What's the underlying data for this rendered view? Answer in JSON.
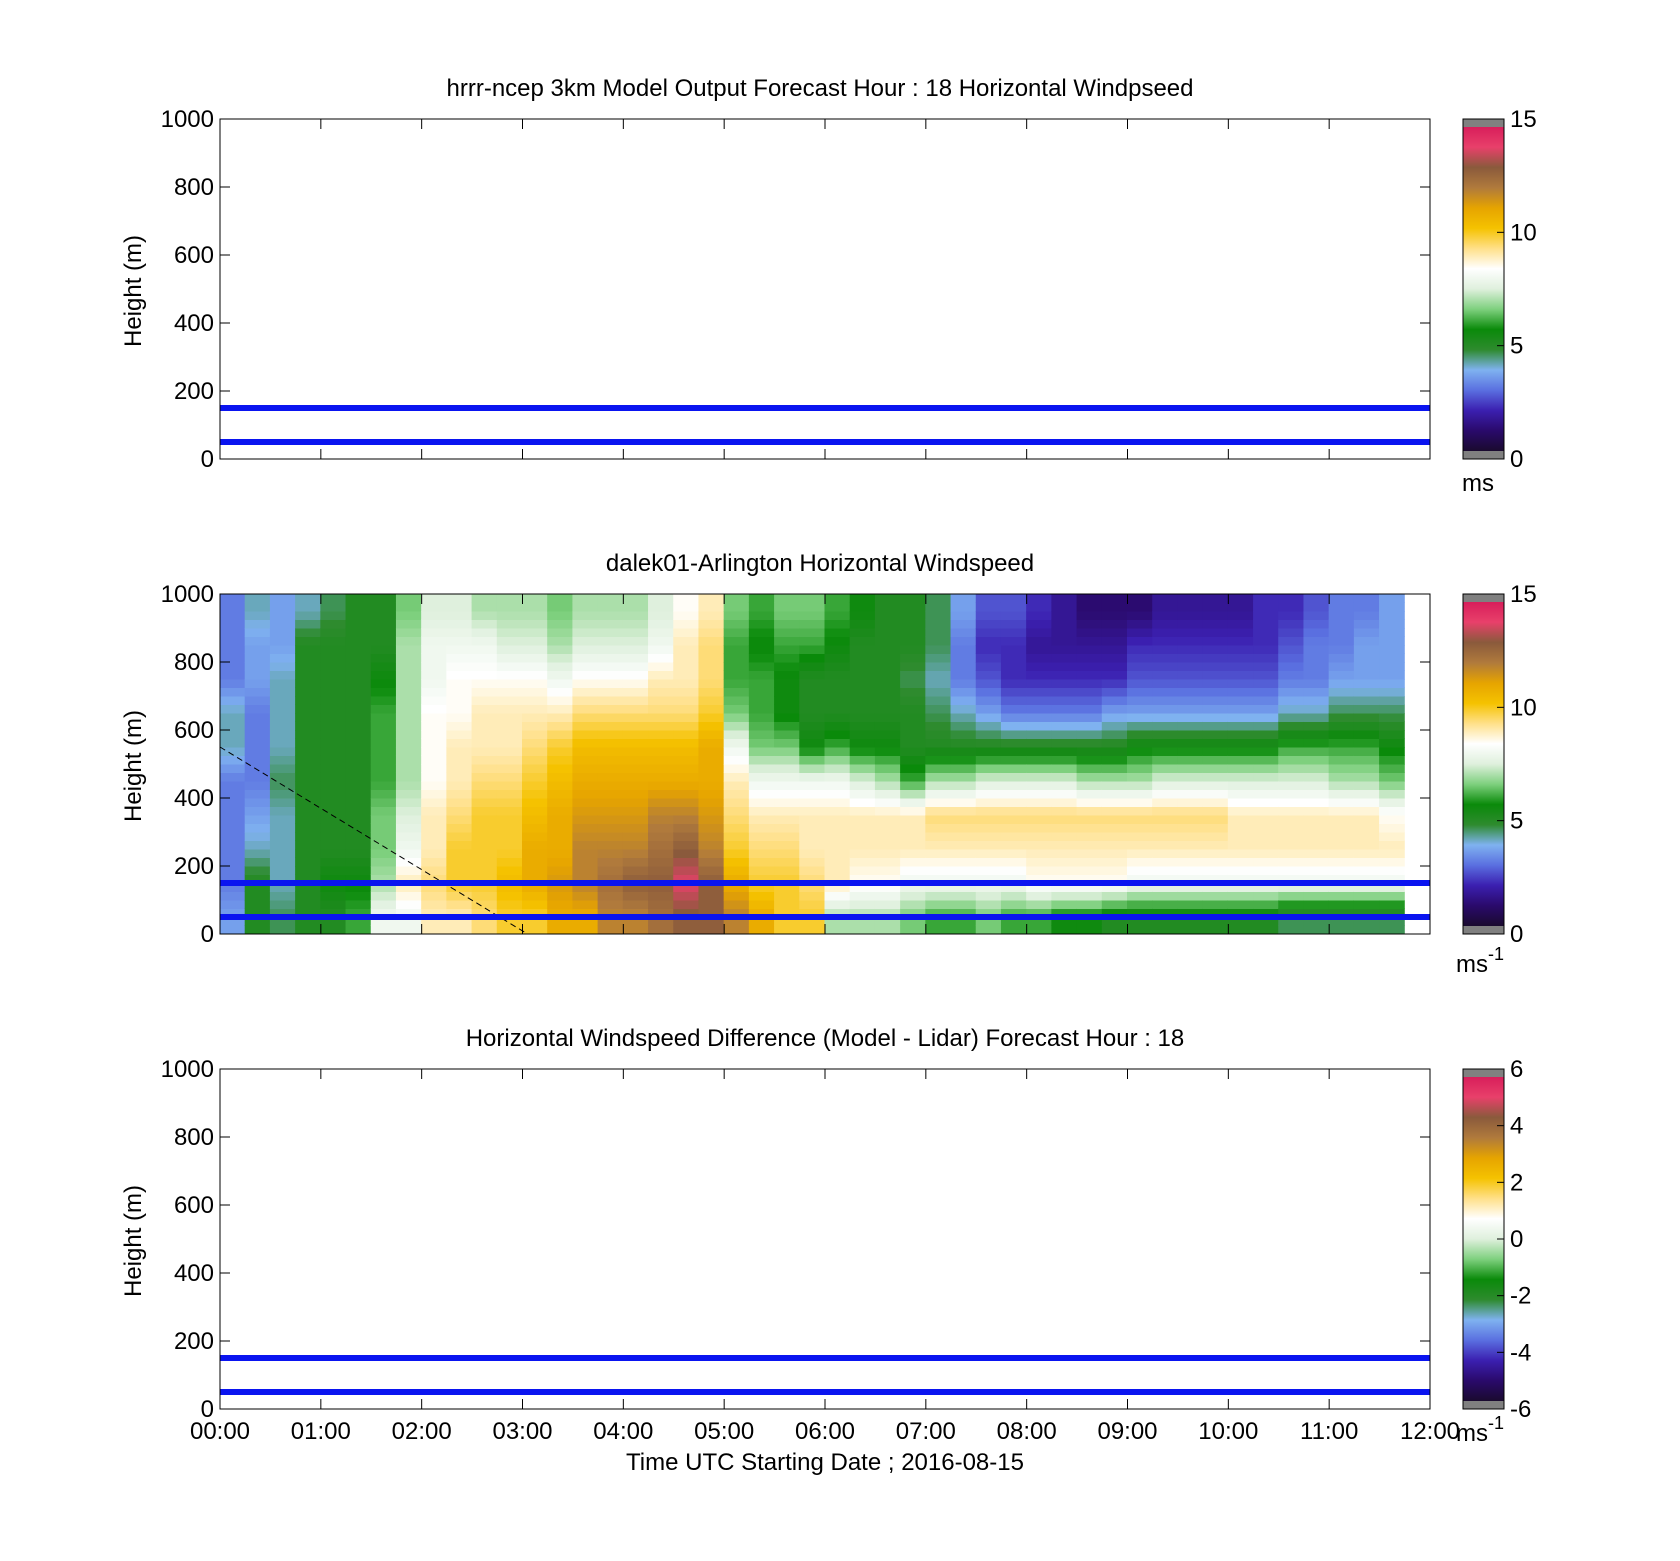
{
  "figure": {
    "xlabel": "Time UTC  Starting Date ; 2016-08-15",
    "ylabel": "Height (m)"
  },
  "colormap_stops": [
    "#1a0a2e",
    "#2a0a6b",
    "#3b1fb0",
    "#5a6fe0",
    "#7fb2f0",
    "#2e8b2e",
    "#0a8a0a",
    "#7ed07e",
    "#dff0dd",
    "#ffffff",
    "#ffe089",
    "#f5c200",
    "#e6a400",
    "#b07a3c",
    "#8a5a3c",
    "#e8406a",
    "#d81e5b"
  ],
  "chart_data": [
    {
      "type": "heatmap",
      "title": "hrrr-ncep 3km Model Output   Forecast Hour : 18 Horizontal Windpseed",
      "ylabel": "Height (m)",
      "ylim": [
        0,
        1000
      ],
      "yticks": [
        "0",
        "200",
        "400",
        "600",
        "800",
        "1000"
      ],
      "xlim_hours": [
        0,
        12
      ],
      "colorbar": {
        "ticks": [
          "0",
          "5",
          "10",
          "15"
        ],
        "range": [
          0,
          15
        ],
        "units_main": "ms",
        "units_sup": ""
      },
      "reference_lines_m": [
        150,
        50
      ],
      "data": []
    },
    {
      "type": "heatmap",
      "title": "dalek01-Arlington  Horizontal Windspeed",
      "ylabel": "Height (m)",
      "ylim": [
        0,
        1000
      ],
      "yticks": [
        "0",
        "200",
        "400",
        "600",
        "800",
        "1000"
      ],
      "xlim_hours": [
        0,
        12
      ],
      "colorbar": {
        "ticks": [
          "0",
          "5",
          "10",
          "15"
        ],
        "range": [
          0,
          15
        ],
        "units_main": "ms",
        "units_sup": "-1"
      },
      "reference_lines_m": [
        150,
        50
      ],
      "dashed_line": {
        "start": [
          0,
          550
        ],
        "end": [
          3.05,
          0
        ]
      },
      "data_extent_hours": [
        0,
        11.85
      ],
      "columns_hours": [
        0.12,
        0.37,
        0.62,
        0.87,
        1.12,
        1.37,
        1.62,
        1.87,
        2.12,
        2.37,
        2.62,
        2.87,
        3.12,
        3.37,
        3.62,
        3.87,
        4.12,
        4.37,
        4.62,
        4.87,
        5.12,
        5.37,
        5.62,
        5.87,
        6.12,
        6.37,
        6.62,
        6.87,
        7.12,
        7.37,
        7.62,
        7.87,
        8.12,
        8.37,
        8.62,
        8.87,
        9.12,
        9.37,
        9.62,
        9.87,
        10.12,
        10.37,
        10.62,
        10.87,
        11.12,
        11.37,
        11.62
      ],
      "windspeed_profile_ms": [
        [
          3.5,
          3,
          3,
          3,
          3,
          4,
          4,
          3,
          3,
          3
        ],
        [
          5,
          5,
          4,
          3.5,
          3,
          3,
          3,
          3.5,
          3.5,
          4
        ],
        [
          4.5,
          4,
          4,
          4,
          4.5,
          4,
          4,
          4,
          3.5,
          3.5
        ],
        [
          5,
          5,
          5,
          5,
          5,
          5,
          5,
          5,
          5,
          4
        ],
        [
          5,
          5.5,
          5,
          5,
          5,
          5,
          5,
          5,
          5,
          4.5
        ],
        [
          6,
          5.5,
          5,
          5,
          5,
          5,
          5,
          5,
          5,
          5
        ],
        [
          8,
          7,
          6.5,
          6.5,
          6,
          6,
          6,
          5.5,
          5,
          5
        ],
        [
          8,
          9,
          8,
          7.5,
          7,
          7,
          7,
          7,
          7,
          6.5
        ],
        [
          9,
          9.5,
          9,
          9,
          8.5,
          8.5,
          8.5,
          8,
          8,
          7.5
        ],
        [
          9,
          10,
          10,
          9.5,
          9,
          9,
          8.5,
          8.5,
          8,
          7.5
        ],
        [
          9.5,
          10,
          10,
          10,
          9.5,
          9,
          9,
          8.5,
          8,
          7
        ],
        [
          10,
          10.5,
          10,
          10,
          9.5,
          9,
          9,
          8.5,
          7.5,
          7
        ],
        [
          10,
          11,
          11,
          10.5,
          10,
          9.5,
          9,
          8.5,
          7.5,
          7
        ],
        [
          11,
          11.5,
          11,
          11,
          10.5,
          10,
          9,
          8,
          7,
          6.5
        ],
        [
          11,
          12,
          12,
          11.5,
          11,
          10.5,
          9.5,
          8.5,
          7.5,
          7
        ],
        [
          12,
          12.5,
          12,
          11.5,
          11,
          10.5,
          9.5,
          8.5,
          7.5,
          7
        ],
        [
          12,
          13,
          12,
          11.5,
          11,
          10.5,
          9.5,
          8.5,
          7.5,
          7
        ],
        [
          12.5,
          13,
          12.5,
          12,
          11,
          10.5,
          9.5,
          9,
          8,
          7.5
        ],
        [
          13,
          14,
          13,
          12,
          11,
          10.5,
          9.5,
          9,
          9,
          8.5
        ],
        [
          13,
          13,
          12,
          11.5,
          11,
          11,
          10,
          9.5,
          9.5,
          9
        ],
        [
          12,
          11,
          10,
          9.5,
          9,
          8,
          6.5,
          6,
          6,
          6.5
        ],
        [
          11,
          10,
          9.5,
          9,
          8,
          6.5,
          6,
          6,
          5.5,
          6
        ],
        [
          10,
          10,
          9.5,
          9,
          8,
          6.5,
          5.5,
          5.5,
          6,
          6.5
        ],
        [
          10,
          9.5,
          9,
          9,
          8,
          5.5,
          5,
          5,
          6,
          6.5
        ],
        [
          7,
          9,
          9,
          9,
          8,
          6,
          5,
          5,
          5.5,
          6
        ],
        [
          7,
          8.5,
          9,
          9,
          7.5,
          5.5,
          5,
          5,
          5,
          5.5
        ],
        [
          7,
          8.5,
          9,
          9,
          7,
          5.5,
          5,
          5,
          5,
          5
        ],
        [
          6.5,
          8,
          9,
          9,
          6,
          5,
          5,
          4.5,
          5,
          5
        ],
        [
          6,
          8,
          9,
          9.5,
          7,
          5,
          4.5,
          4,
          4.5,
          4.5
        ],
        [
          6,
          8,
          9,
          9.5,
          7,
          5,
          4,
          3,
          3,
          3.5
        ],
        [
          6.5,
          8,
          9,
          9.5,
          7.5,
          5,
          3.5,
          2.5,
          2,
          2.5
        ],
        [
          6,
          8,
          9,
          9.5,
          7.5,
          5,
          3,
          2,
          2,
          2.5
        ],
        [
          6,
          8.5,
          9,
          9.5,
          7.5,
          5,
          3,
          2,
          1.5,
          2
        ],
        [
          5.5,
          8.5,
          9,
          9.5,
          7.5,
          5,
          3,
          2,
          1.5,
          1.5
        ],
        [
          5.5,
          8.5,
          9,
          9.5,
          7,
          5,
          3,
          2,
          1.5,
          1
        ],
        [
          5,
          8.5,
          9,
          9.5,
          7,
          5,
          3.5,
          2,
          1.5,
          1
        ],
        [
          5,
          8,
          9,
          9.5,
          7,
          5.5,
          3.5,
          2.5,
          2,
          1
        ],
        [
          5,
          8,
          9,
          9.5,
          7.5,
          5.5,
          3.5,
          2.5,
          2,
          1.5
        ],
        [
          5,
          8,
          9,
          9.5,
          7.5,
          5.5,
          3.5,
          2.5,
          2,
          1.5
        ],
        [
          5,
          8,
          9,
          9.5,
          7.5,
          5.5,
          3.5,
          2.5,
          2,
          1.5
        ],
        [
          5,
          8,
          9,
          9,
          7.5,
          5.5,
          3.5,
          2.5,
          2,
          1.5
        ],
        [
          5,
          8,
          9,
          9,
          7.5,
          5.5,
          3.5,
          2.5,
          2,
          2
        ],
        [
          4.5,
          8,
          9,
          9,
          7.5,
          6,
          4,
          3,
          2.5,
          2
        ],
        [
          4.5,
          8,
          9,
          9,
          7.5,
          6,
          4,
          3,
          3,
          2.5
        ],
        [
          4.5,
          8,
          9,
          9,
          7,
          6,
          4.5,
          3.5,
          3,
          3
        ],
        [
          4.5,
          8,
          9,
          9,
          7,
          6,
          4.5,
          3.5,
          3.5,
          3
        ],
        [
          4.5,
          8,
          9,
          8.5,
          6.5,
          5.5,
          4.5,
          3.5,
          3.5,
          3.5
        ]
      ],
      "profile_heights_m": [
        50,
        150,
        250,
        350,
        450,
        550,
        650,
        750,
        850,
        950
      ]
    },
    {
      "type": "heatmap",
      "title": "Horizontal Windspeed Difference (Model - Lidar) Forecast Hour : 18",
      "ylabel": "Height (m)",
      "ylim": [
        0,
        1000
      ],
      "yticks": [
        "0",
        "200",
        "400",
        "600",
        "800",
        "1000"
      ],
      "xlim_hours": [
        0,
        12
      ],
      "colorbar": {
        "ticks": [
          "-6",
          "-4",
          "-2",
          "0",
          "2",
          "4",
          "6"
        ],
        "range": [
          -6,
          6
        ],
        "units_main": "ms",
        "units_sup": "-1"
      },
      "reference_lines_m": [
        150,
        50
      ],
      "data": []
    }
  ],
  "xticks": [
    "00:00",
    "01:00",
    "02:00",
    "03:00",
    "04:00",
    "05:00",
    "06:00",
    "07:00",
    "08:00",
    "09:00",
    "10:00",
    "11:00",
    "12:00"
  ]
}
